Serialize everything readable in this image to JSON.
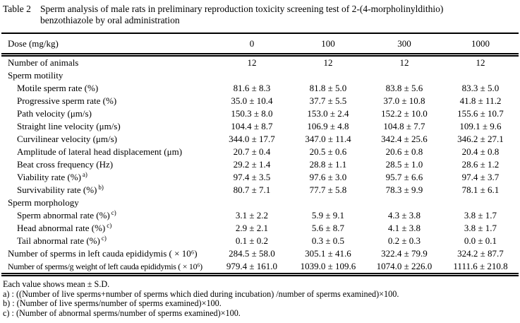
{
  "title": {
    "tag": "Table 2",
    "line1": "Sperm analysis of male rats in preliminary reproduction toxicity screening test of 2-(4-morpholinyldithio)",
    "line2": "benzothiazole by oral administration"
  },
  "table": {
    "header": {
      "label": "Dose (mg/kg)",
      "columns": [
        "0",
        "100",
        "300",
        "1000"
      ]
    },
    "rows": [
      {
        "label": "Number of animals",
        "indent": 0,
        "values": [
          "12",
          "12",
          "12",
          "12"
        ]
      },
      {
        "label": "Sperm motility",
        "indent": 0,
        "section": true,
        "values": []
      },
      {
        "label": "Motile sperm rate (%)",
        "indent": 1,
        "values": [
          "81.6 ± 8.3",
          "81.8 ± 5.0",
          "83.8 ± 5.6",
          "83.3 ± 5.0"
        ]
      },
      {
        "label": "Progressive sperm rate (%)",
        "indent": 1,
        "values": [
          "35.0 ± 10.4",
          "37.7 ± 5.5",
          "37.0 ± 10.8",
          "41.8 ± 11.2"
        ]
      },
      {
        "label": "Path velocity (μm/s)",
        "indent": 1,
        "values": [
          "150.3 ± 8.0",
          "153.0 ± 2.4",
          "152.2 ± 10.0",
          "155.6 ± 10.7"
        ]
      },
      {
        "label": "Straight line velocity (μm/s)",
        "indent": 1,
        "values": [
          "104.4 ± 8.7",
          "106.9 ± 4.8",
          "104.8 ± 7.7",
          "109.1 ± 9.6"
        ]
      },
      {
        "label": "Curvilinear velocity (μm/s)",
        "indent": 1,
        "values": [
          "344.0 ± 17.7",
          "347.0 ± 11.4",
          "342.4 ± 25.6",
          "346.2 ± 27.1"
        ]
      },
      {
        "label": "Amplitude of lateral head displacement (μm)",
        "indent": 1,
        "values": [
          "20.7 ± 0.4",
          "20.5 ± 0.6",
          "20.6 ± 0.8",
          "20.4 ± 0.8"
        ]
      },
      {
        "label": "Beat cross frequency (Hz)",
        "indent": 1,
        "values": [
          "29.2 ± 1.4",
          "28.8 ± 1.1",
          "28.5 ± 1.0",
          "28.6 ± 1.2"
        ]
      },
      {
        "label": "Viability rate (%)",
        "sup": "a)",
        "indent": 1,
        "values": [
          "97.4 ± 3.5",
          "97.6 ± 3.0",
          "95.7 ± 6.6",
          "97.4 ± 3.7"
        ]
      },
      {
        "label": "Survivability rate (%)",
        "sup": "b)",
        "indent": 1,
        "values": [
          "80.7 ± 7.1",
          "77.7 ± 5.8",
          "78.3 ± 9.9",
          "78.1 ± 6.1"
        ]
      },
      {
        "label": "Sperm morphology",
        "indent": 0,
        "section": true,
        "values": []
      },
      {
        "label": "Sperm abnormal rate (%)",
        "sup": "c)",
        "indent": 1,
        "values": [
          "3.1 ± 2.2",
          "5.9 ± 9.1",
          "4.3 ± 3.8",
          "3.8 ± 1.7"
        ]
      },
      {
        "label": "Head abnormal rate (%)",
        "sup": "c)",
        "indent": 1,
        "values": [
          "2.9 ± 2.1",
          "5.6 ± 8.7",
          "4.1 ± 3.8",
          "3.8 ± 1.7"
        ]
      },
      {
        "label": "Tail abnormal rate (%)",
        "sup": "c)",
        "indent": 1,
        "values": [
          "0.1 ± 0.2",
          "0.3 ± 0.5",
          "0.2 ± 0.3",
          "0.0 ± 0.1"
        ]
      },
      {
        "label": "Number of sperms in left cauda epididymis ( × 10⁶)",
        "indent": 0,
        "values": [
          "284.5 ± 58.0",
          "305.1 ± 41.6",
          "322.4 ± 79.9",
          "324.2 ± 87.7"
        ]
      },
      {
        "label": "Number of sperms/g weight of left cauda epididymis ( × 10⁶)",
        "indent": 0,
        "condensed": true,
        "values": [
          "979.4 ± 161.0",
          "1039.0 ± 109.6",
          "1074.0 ± 226.0",
          "1111.6 ± 210.8"
        ]
      }
    ]
  },
  "footnotes": [
    "Each value shows mean ± S.D.",
    "a) : ((Number of live sperms+number of sperms which died during incubation) /number of sperms examined)×100.",
    "b) : (Number of live sperms/number of sperms examined)×100.",
    "c) : (Number of abnormal sperms/number of sperms examined)×100."
  ]
}
